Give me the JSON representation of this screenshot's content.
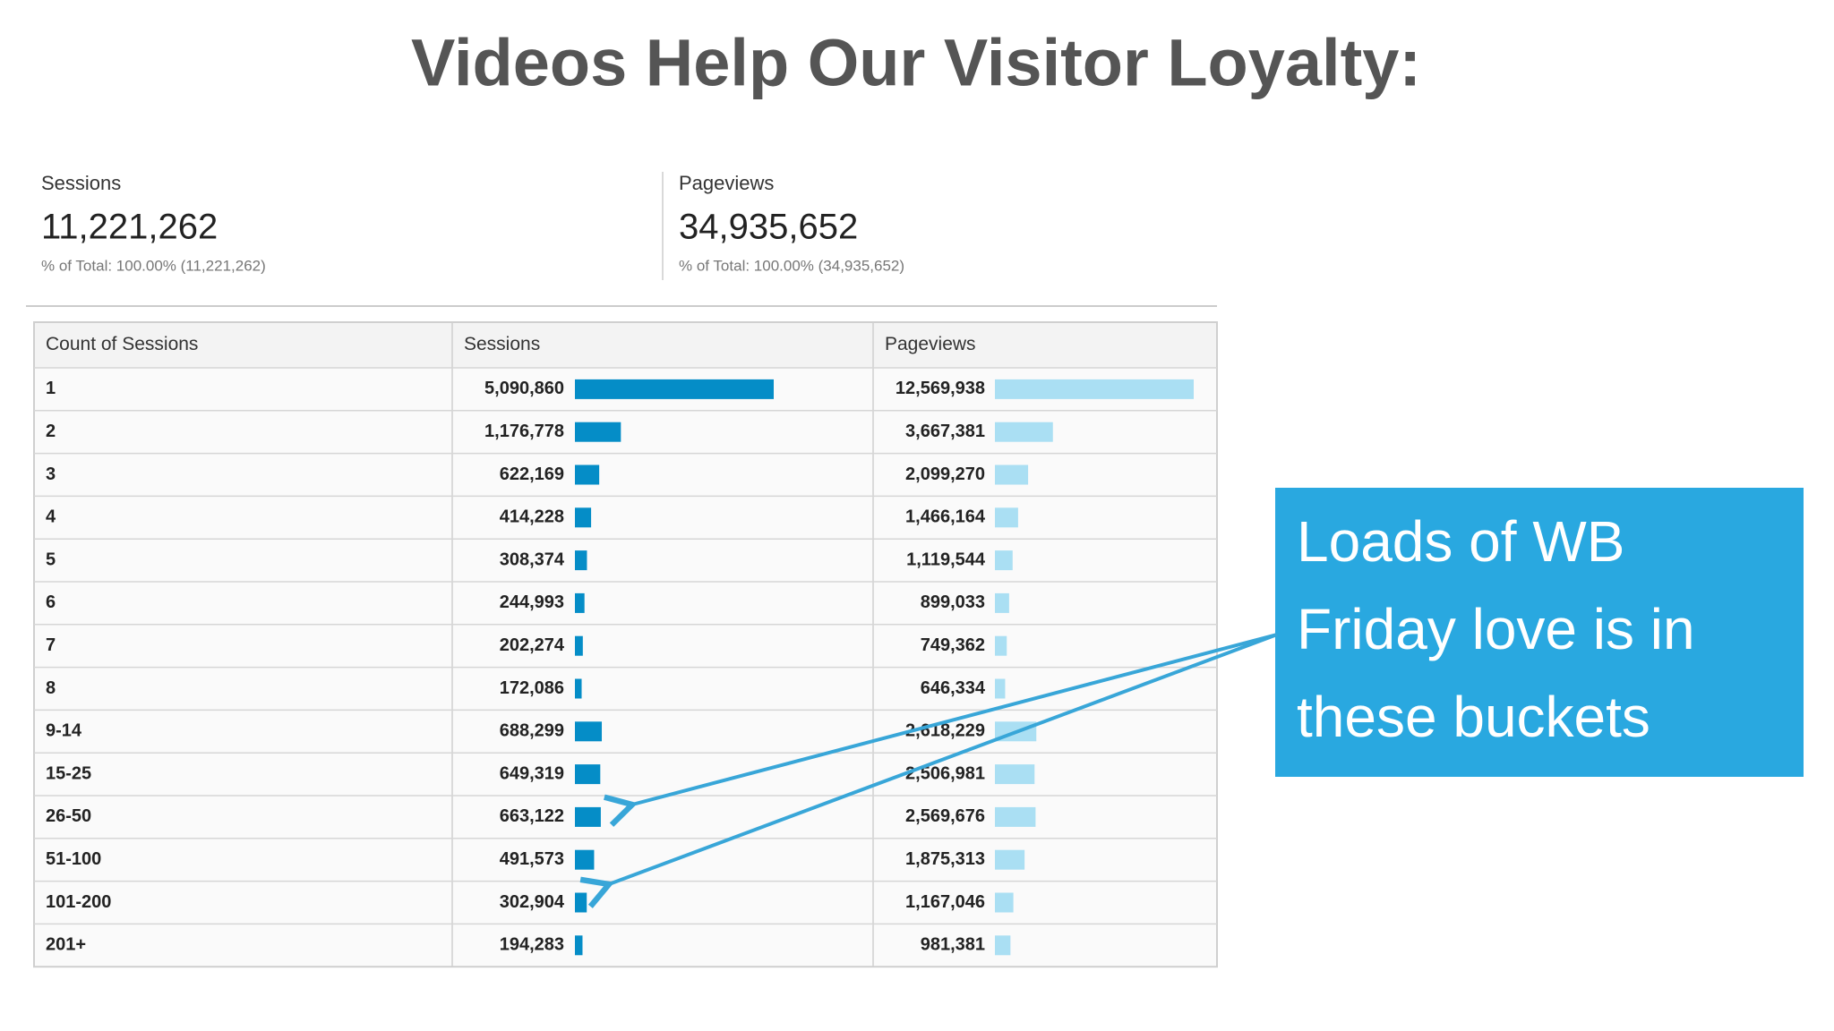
{
  "title": "Videos Help Our Visitor Loyalty:",
  "summary": [
    {
      "label": "Sessions",
      "value": "11,221,262",
      "note": "% of Total: 100.00% (11,221,262)"
    },
    {
      "label": "Pageviews",
      "value": "34,935,652",
      "note": "% of Total: 100.00% (34,935,652)"
    }
  ],
  "table": {
    "headers": [
      "Count of Sessions",
      "Sessions",
      "Pageviews"
    ],
    "rows": [
      [
        "1",
        {
          "value": 5090860,
          "label": "5,090,860"
        },
        {
          "value": 12569938,
          "label": "12,569,938"
        }
      ],
      [
        "2",
        {
          "value": 1176778,
          "label": "1,176,778"
        },
        {
          "value": 3667381,
          "label": "3,667,381"
        }
      ],
      [
        "3",
        {
          "value": 622169,
          "label": "622,169"
        },
        {
          "value": 2099270,
          "label": "2,099,270"
        }
      ],
      [
        "4",
        {
          "value": 414228,
          "label": "414,228"
        },
        {
          "value": 1466164,
          "label": "1,466,164"
        }
      ],
      [
        "5",
        {
          "value": 308374,
          "label": "308,374"
        },
        {
          "value": 1119544,
          "label": "1,119,544"
        }
      ],
      [
        "6",
        {
          "value": 244993,
          "label": "244,993"
        },
        {
          "value": 899033,
          "label": "899,033"
        }
      ],
      [
        "7",
        {
          "value": 202274,
          "label": "202,274"
        },
        {
          "value": 749362,
          "label": "749,362"
        }
      ],
      [
        "8",
        {
          "value": 172086,
          "label": "172,086"
        },
        {
          "value": 646334,
          "label": "646,334"
        }
      ],
      [
        "9-14",
        {
          "value": 688299,
          "label": "688,299"
        },
        {
          "value": 2618229,
          "label": "2,618,229"
        }
      ],
      [
        "15-25",
        {
          "value": 649319,
          "label": "649,319"
        },
        {
          "value": 2506981,
          "label": "2,506,981"
        }
      ],
      [
        "26-50",
        {
          "value": 663122,
          "label": "663,122"
        },
        {
          "value": 2569676,
          "label": "2,569,676"
        }
      ],
      [
        "51-100",
        {
          "value": 491573,
          "label": "491,573"
        },
        {
          "value": 1875313,
          "label": "1,875,313"
        }
      ],
      [
        "101-200",
        {
          "value": 302904,
          "label": "302,904"
        },
        {
          "value": 1167046,
          "label": "1,167,046"
        }
      ],
      [
        "201+",
        {
          "value": 194283,
          "label": "194,283"
        },
        {
          "value": 981381,
          "label": "981,381"
        }
      ]
    ]
  },
  "callout": {
    "lines": [
      "Loads of WB",
      "Friday love is in",
      "these buckets"
    ]
  }
}
